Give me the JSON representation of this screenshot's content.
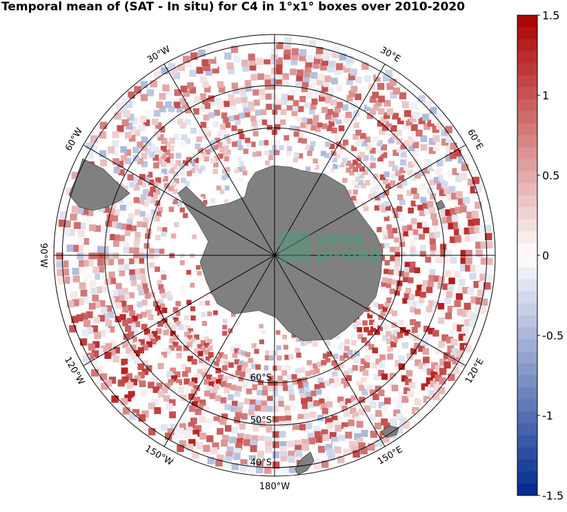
{
  "chart_data": {
    "type": "heatmap",
    "projection": "south-polar-stereographic",
    "title": "Temporal mean of (SAT - In situ) for C4 in 1°x1° boxes over 2010-2020",
    "variable": "SAT - In situ",
    "grid_resolution": "1°x1°",
    "period": "2010-2020",
    "latitude_extent": [
      -90,
      -38
    ],
    "longitude_labels": [
      "30°W",
      "30°E",
      "60°W",
      "60°E",
      "90°W",
      "120°W",
      "120°E",
      "150°W",
      "150°E",
      "180°W"
    ],
    "latitude_labels": [
      "60°S",
      "50°S",
      "40°S"
    ],
    "colorbar": {
      "range": [
        -1.5,
        1.5
      ],
      "ticks": [
        1.5,
        1,
        0.5,
        0,
        -0.5,
        -1,
        -1.5
      ],
      "tick_labels": [
        "1.5",
        "1",
        "0.5",
        "0",
        "-0.5",
        "-1",
        "-1.5"
      ],
      "colormap": "blue-white-red"
    },
    "grid": true,
    "legend": "right",
    "land_color": "#808080",
    "pattern_summary": "Mostly positive (red) anomalies between 40°S and 70°S, strongest in the Atlantic sector near the Antarctic Peninsula and in the Indian Ocean sector; scattered negative (blue) cells; no data south of ~63°S except near the coast."
  },
  "logo": {
    "line1": "smos",
    "line2": "pi-mep"
  },
  "colors": {
    "positive": "#c00000",
    "negative": "#0050d0",
    "neutral": "#ffffff",
    "land": "#808080"
  }
}
